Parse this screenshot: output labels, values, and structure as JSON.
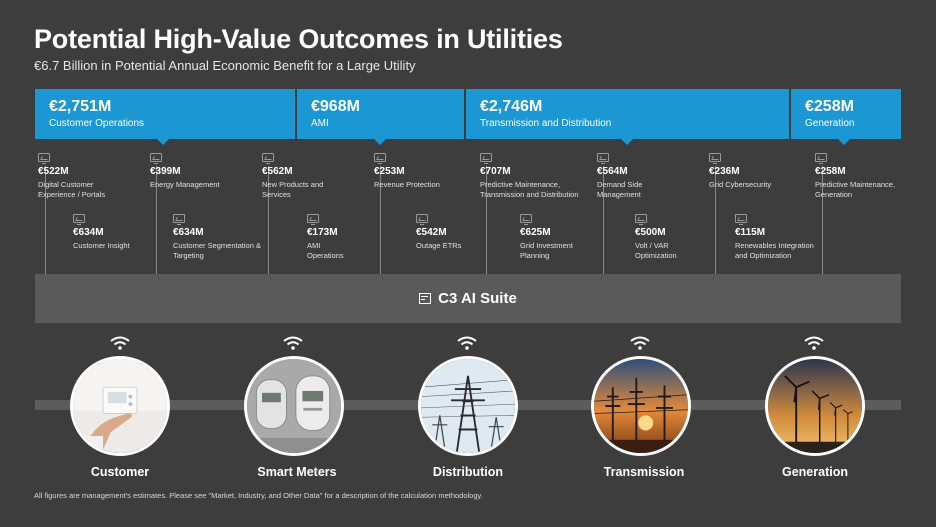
{
  "header": {
    "title": "Potential High-Value Outcomes in Utilities",
    "subtitle": "€6.7 Billion in Potential Annual Economic Benefit for a Large Utility"
  },
  "banners": [
    {
      "amount": "€2,751M",
      "label": "Customer Operations"
    },
    {
      "amount": "€968M",
      "label": "AMI"
    },
    {
      "amount": "€2,746M",
      "label": "Transmission and Distribution"
    },
    {
      "amount": "€258M",
      "label": "Generation"
    }
  ],
  "top_items": [
    {
      "amount": "€522M",
      "label": "Digital Customer Experience / Portals"
    },
    {
      "amount": "€399M",
      "label": "Energy Management"
    },
    {
      "amount": "€562M",
      "label": "New Products and Services"
    },
    {
      "amount": "€253M",
      "label": "Revenue Protection"
    },
    {
      "amount": "€707M",
      "label": "Predictive Maintenance, Transmission and Distribution"
    },
    {
      "amount": "€564M",
      "label": "Demand Side Management"
    },
    {
      "amount": "€236M",
      "label": "Grid Cybersecurity"
    },
    {
      "amount": "€258M",
      "label": "Predictive Maintenance, Generation"
    }
  ],
  "bottom_items": [
    {
      "amount": "€634M",
      "label": "Customer Insight"
    },
    {
      "amount": "€634M",
      "label": "Customer Segmentation & Targeting"
    },
    {
      "amount": "€173M",
      "label": "AMI Operations"
    },
    {
      "amount": "€542M",
      "label": "Outage ETRs"
    },
    {
      "amount": "€625M",
      "label": "Grid Investment Planning"
    },
    {
      "amount": "€500M",
      "label": "Volt / VAR Optimization"
    },
    {
      "amount": "€115M",
      "label": "Renewables Integration and Optimization"
    }
  ],
  "suite": {
    "label": "C3 AI Suite",
    "icon": "c3-suite-icon"
  },
  "assets": [
    {
      "label": "Customer",
      "icon": "thermostat-photo"
    },
    {
      "label": "Smart Meters",
      "icon": "meters-photo"
    },
    {
      "label": "Distribution",
      "icon": "pylon-photo"
    },
    {
      "label": "Transmission",
      "icon": "substation-sunset-photo"
    },
    {
      "label": "Generation",
      "icon": "wind-turbines-photo"
    }
  ],
  "footnote": "All figures are management's estimates.  Please see \"Market, Industry, and Other Data\" for a description of the calculation methodology.",
  "colors": {
    "banner": "#1b97d4",
    "background": "#3d3d3d",
    "suite": "#5a5a5a"
  }
}
